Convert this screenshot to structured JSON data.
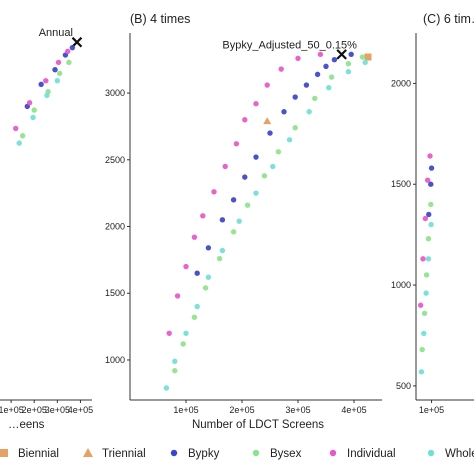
{
  "colors": {
    "Annual": "#111111",
    "Biennial": "#e6a166",
    "Triennial": "#e6a166",
    "Bypky": "#3b43c9",
    "Bysex": "#8ee28a",
    "Individual": "#e657c8",
    "Whole": "#6fe0d6"
  },
  "chart_data": [
    {
      "panel": "A",
      "type": "scatter",
      "title": "",
      "xlabel": "…eens",
      "xlim": [
        0,
        450000
      ],
      "ylim": [
        0,
        1
      ],
      "x_ticks": [
        "1e+05",
        "2e+05",
        "3e+05",
        "4e+05"
      ],
      "x_tick_values": [
        100000,
        200000,
        300000,
        400000
      ],
      "y_ticks": [],
      "annotations": [
        {
          "text": "Annual",
          "x": 385000,
          "y": 0.975
        }
      ],
      "series": [
        {
          "name": "Annual",
          "marker": "x",
          "points": [
            [
              385000,
              0.975
            ]
          ]
        },
        {
          "name": "Bypky",
          "points": [
            [
              170000,
              0.8
            ],
            [
              230000,
              0.86
            ],
            [
              290000,
              0.9
            ],
            [
              335000,
              0.94
            ],
            [
              365000,
              0.96
            ]
          ]
        },
        {
          "name": "Bysex",
          "points": [
            [
              150000,
              0.72
            ],
            [
              200000,
              0.79
            ],
            [
              260000,
              0.84
            ],
            [
              310000,
              0.89
            ],
            [
              350000,
              0.92
            ]
          ]
        },
        {
          "name": "Individual",
          "points": [
            [
              120000,
              0.74
            ],
            [
              180000,
              0.81
            ],
            [
              250000,
              0.87
            ],
            [
              305000,
              0.92
            ],
            [
              345000,
              0.95
            ]
          ]
        },
        {
          "name": "Whole",
          "points": [
            [
              135000,
              0.7
            ],
            [
              195000,
              0.77
            ],
            [
              255000,
              0.83
            ],
            [
              300000,
              0.87
            ]
          ]
        }
      ]
    },
    {
      "panel": "B",
      "type": "scatter",
      "title": "(B) 4 times",
      "xlabel": "Number of LDCT Screens",
      "xlim": [
        0,
        450000
      ],
      "ylim": [
        700,
        3450
      ],
      "x_ticks": [
        "1e+05",
        "2e+05",
        "3e+05",
        "4e+05"
      ],
      "x_tick_values": [
        100000,
        200000,
        300000,
        400000
      ],
      "y_ticks": [
        "1000",
        "1500",
        "2000",
        "2500",
        "3000"
      ],
      "y_tick_values": [
        1000,
        1500,
        2000,
        2500,
        3000
      ],
      "annotations": [
        {
          "text": "Bypky_Adjusted_50_0.15%",
          "x": 378000,
          "y": 3290
        }
      ],
      "series": [
        {
          "name": "Annual",
          "marker": "x",
          "points": [
            [
              378000,
              3290
            ]
          ]
        },
        {
          "name": "Biennial",
          "marker": "square",
          "points": [
            [
              425000,
              3270
            ]
          ]
        },
        {
          "name": "Triennial",
          "marker": "triangle",
          "points": [
            [
              245000,
              2790
            ]
          ]
        },
        {
          "name": "Bypky",
          "points": [
            [
              120000,
              1650
            ],
            [
              140000,
              1840
            ],
            [
              165000,
              2050
            ],
            [
              185000,
              2200
            ],
            [
              205000,
              2370
            ],
            [
              225000,
              2520
            ],
            [
              250000,
              2700
            ],
            [
              275000,
              2860
            ],
            [
              295000,
              2970
            ],
            [
              315000,
              3060
            ],
            [
              335000,
              3140
            ],
            [
              350000,
              3200
            ],
            [
              365000,
              3250
            ],
            [
              395000,
              3290
            ]
          ]
        },
        {
          "name": "Bysex",
          "points": [
            [
              80000,
              920
            ],
            [
              95000,
              1120
            ],
            [
              115000,
              1320
            ],
            [
              135000,
              1540
            ],
            [
              160000,
              1760
            ],
            [
              185000,
              1960
            ],
            [
              210000,
              2160
            ],
            [
              240000,
              2380
            ],
            [
              265000,
              2560
            ],
            [
              295000,
              2740
            ],
            [
              330000,
              2960
            ],
            [
              360000,
              3120
            ],
            [
              390000,
              3220
            ],
            [
              415000,
              3270
            ]
          ]
        },
        {
          "name": "Individual",
          "points": [
            [
              70000,
              1200
            ],
            [
              85000,
              1480
            ],
            [
              100000,
              1700
            ],
            [
              115000,
              1920
            ],
            [
              130000,
              2080
            ],
            [
              150000,
              2260
            ],
            [
              170000,
              2450
            ],
            [
              190000,
              2620
            ],
            [
              205000,
              2800
            ],
            [
              225000,
              2920
            ],
            [
              245000,
              3060
            ],
            [
              270000,
              3180
            ],
            [
              300000,
              3260
            ],
            [
              340000,
              3290
            ]
          ]
        },
        {
          "name": "Whole",
          "points": [
            [
              65000,
              790
            ],
            [
              80000,
              990
            ],
            [
              100000,
              1200
            ],
            [
              120000,
              1400
            ],
            [
              140000,
              1620
            ],
            [
              165000,
              1820
            ],
            [
              195000,
              2040
            ],
            [
              225000,
              2250
            ],
            [
              255000,
              2450
            ],
            [
              285000,
              2650
            ],
            [
              320000,
              2860
            ],
            [
              355000,
              3040
            ],
            [
              390000,
              3160
            ],
            [
              420000,
              3230
            ]
          ]
        }
      ]
    },
    {
      "panel": "C",
      "type": "scatter",
      "title": "(C) 6 tim…",
      "xlabel": "",
      "xlim": [
        0,
        450000
      ],
      "ylim": [
        430,
        2250
      ],
      "x_ticks": [
        "1e+05"
      ],
      "x_tick_values": [
        100000
      ],
      "y_ticks": [
        "500",
        "1000",
        "1500",
        "2000"
      ],
      "y_tick_values": [
        500,
        1000,
        1500,
        2000
      ],
      "annotations": [],
      "series": [
        {
          "name": "Bypky",
          "points": [
            [
              82000,
              1350
            ],
            [
              95000,
              1500
            ],
            [
              100000,
              1580
            ]
          ]
        },
        {
          "name": "Bysex",
          "points": [
            [
              40000,
              680
            ],
            [
              55000,
              860
            ],
            [
              68000,
              1050
            ],
            [
              80000,
              1230
            ],
            [
              95000,
              1400
            ]
          ]
        },
        {
          "name": "Individual",
          "points": [
            [
              30000,
              900
            ],
            [
              45000,
              1130
            ],
            [
              60000,
              1330
            ],
            [
              75000,
              1520
            ],
            [
              90000,
              1640
            ]
          ]
        },
        {
          "name": "Whole",
          "points": [
            [
              35000,
              570
            ],
            [
              50000,
              760
            ],
            [
              65000,
              960
            ],
            [
              80000,
              1130
            ],
            [
              97000,
              1300
            ]
          ]
        }
      ]
    }
  ],
  "legend": [
    {
      "label": "Biennial",
      "marker": "square",
      "series": "Biennial"
    },
    {
      "label": "Triennial",
      "marker": "triangle",
      "series": "Triennial"
    },
    {
      "label": "Bypky",
      "marker": "circle",
      "series": "Bypky"
    },
    {
      "label": "Bysex",
      "marker": "circle",
      "series": "Bysex"
    },
    {
      "label": "Individual",
      "marker": "circle",
      "series": "Individual"
    },
    {
      "label": "Whole",
      "marker": "circle",
      "series": "Whole"
    }
  ]
}
